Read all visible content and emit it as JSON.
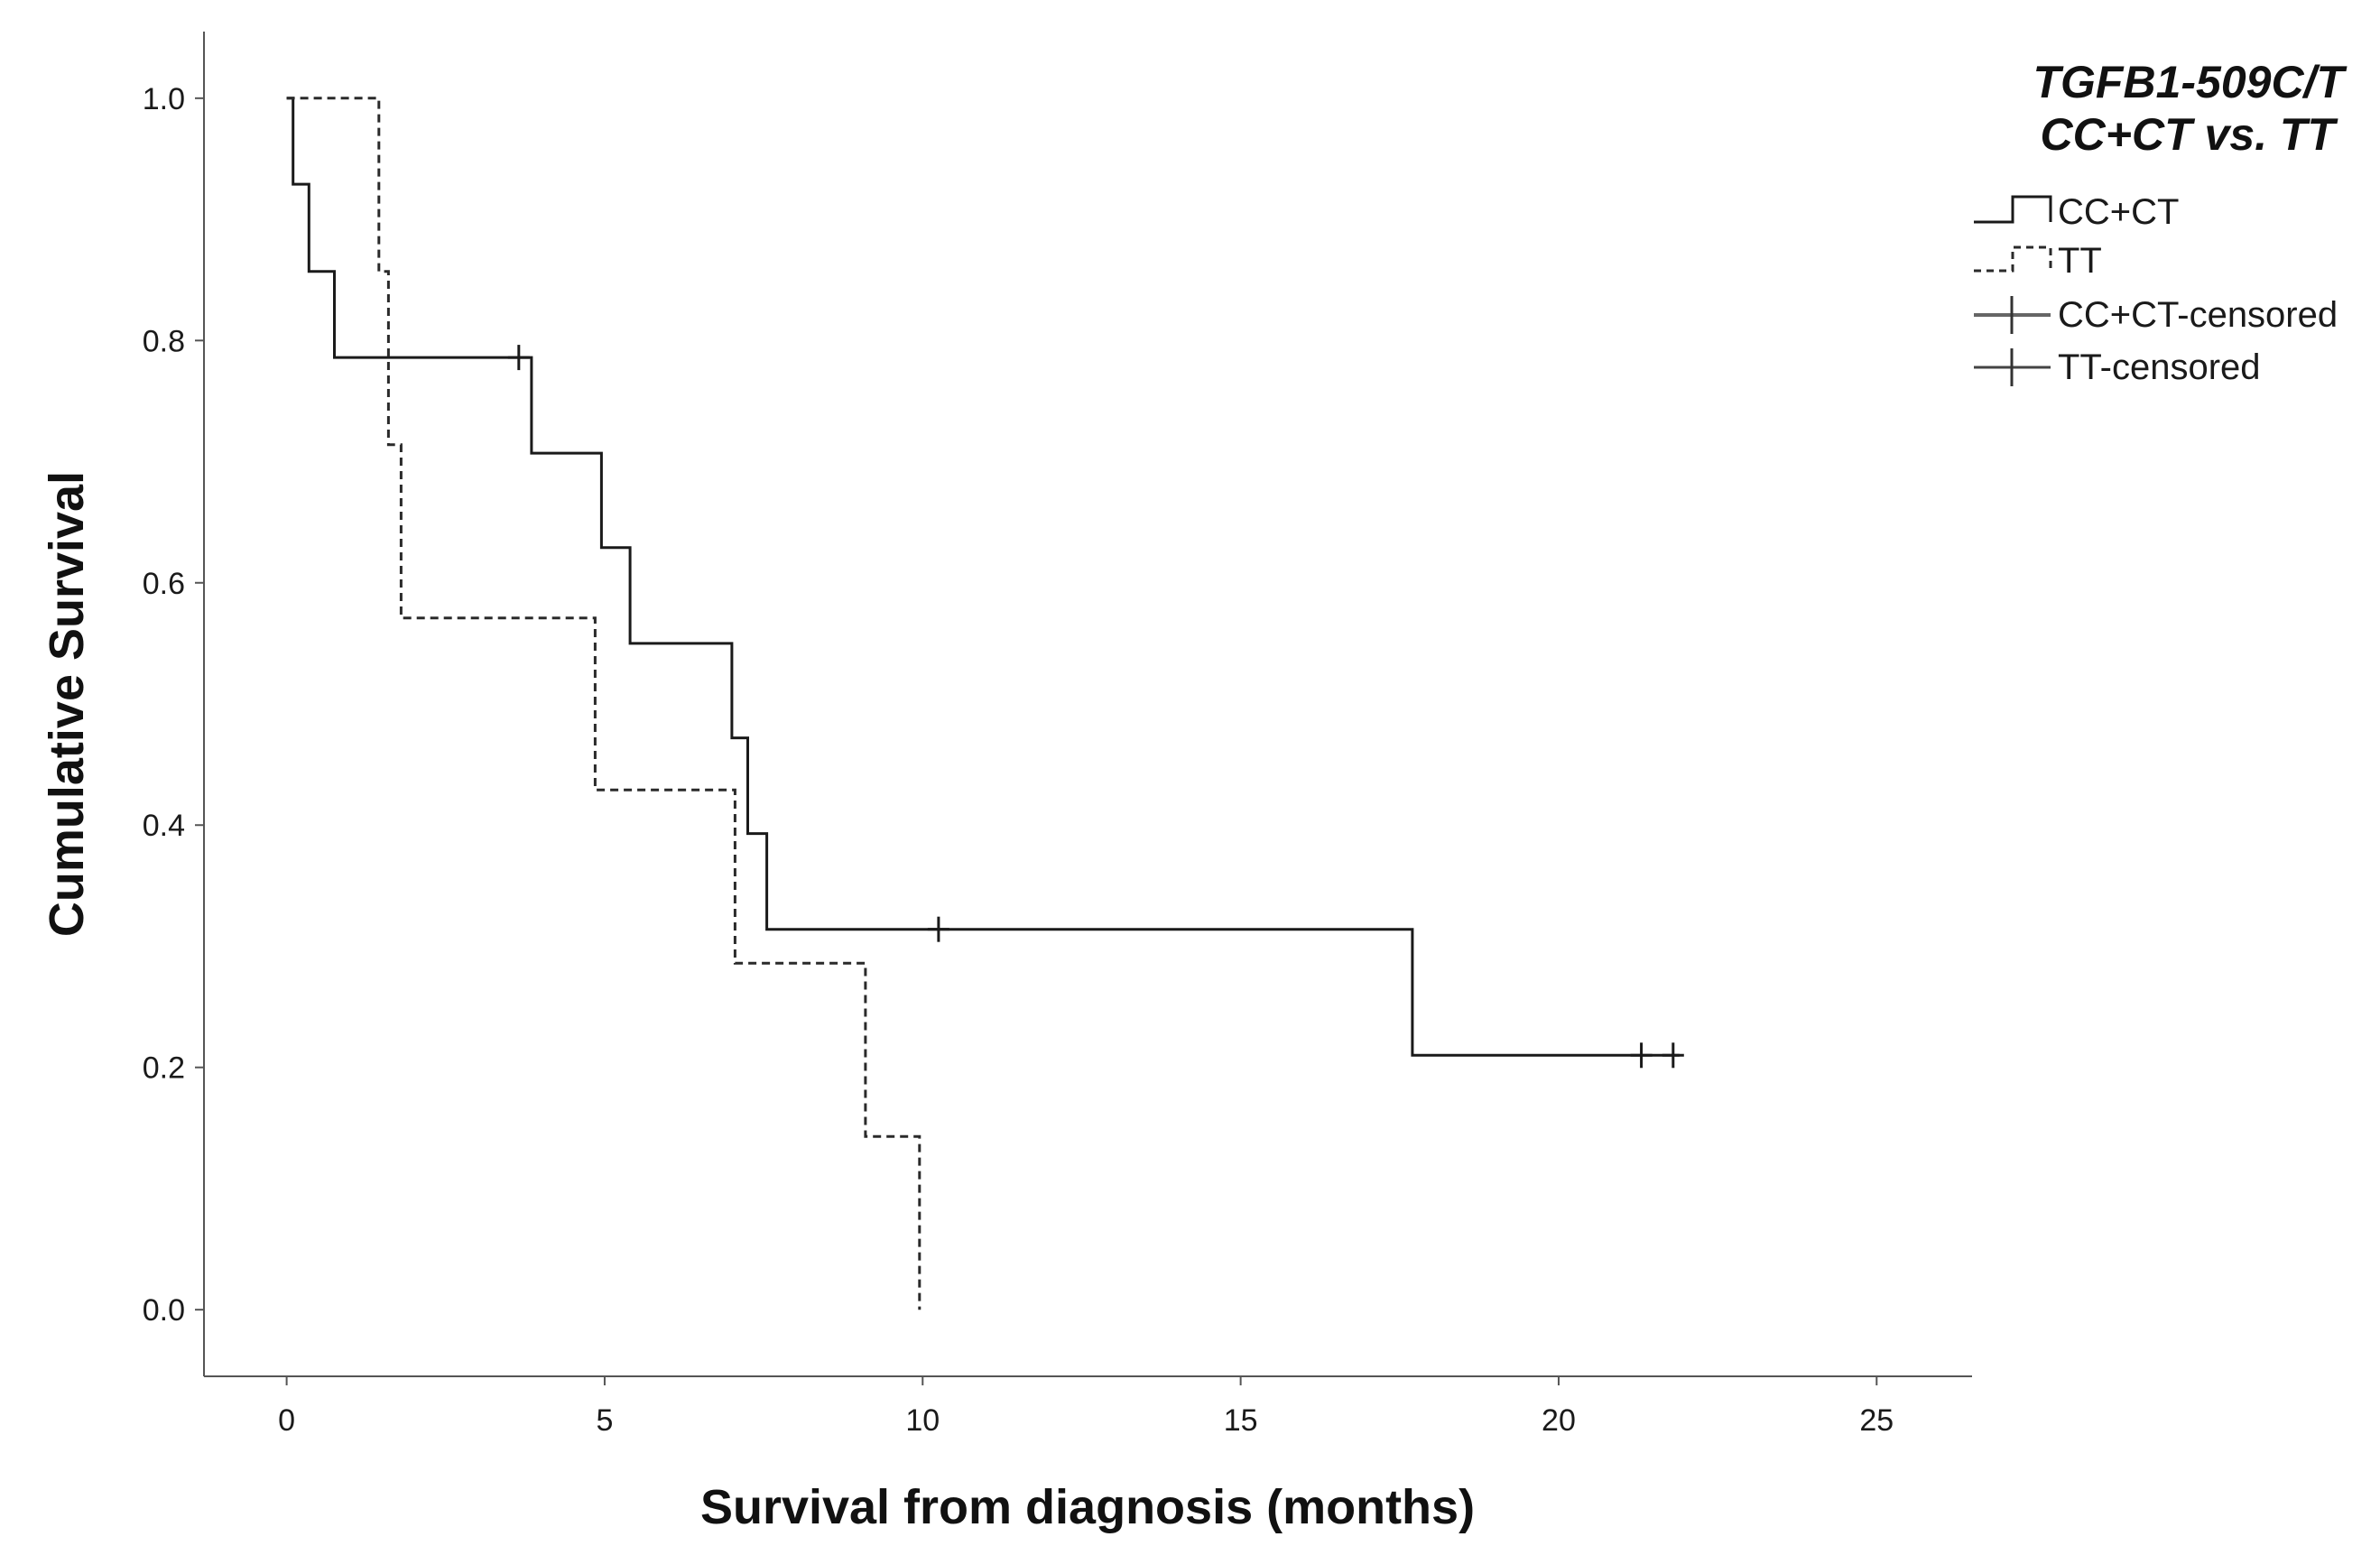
{
  "chart_data": {
    "type": "line",
    "subtype": "kaplan-meier",
    "xlabel": "Survival from diagnosis (months)",
    "ylabel": "Cumulative Survival",
    "xlim": [
      -1.3,
      26.5
    ],
    "ylim": [
      -0.055,
      1.055
    ],
    "xticks": [
      0,
      5,
      10,
      15,
      20,
      25
    ],
    "yticks": [
      0.0,
      0.2,
      0.4,
      0.6,
      0.8,
      1.0
    ],
    "xtick_labels": [
      "0",
      "5",
      "10",
      "15",
      "20",
      "25"
    ],
    "ytick_labels": [
      "0.0",
      "0.2",
      "0.4",
      "0.6",
      "0.8",
      "1.0"
    ],
    "legend_title": [
      "TGFB1-509C/T",
      "CC+CT vs. TT"
    ],
    "legend_entries": [
      "CC+CT",
      "TT",
      "CC+CT-censored",
      "TT-censored"
    ],
    "series": [
      {
        "name": "CC+CT",
        "style": "solid",
        "color": "#1a1a1a",
        "steps": [
          [
            0.0,
            1.0
          ],
          [
            0.1,
            0.929
          ],
          [
            0.35,
            0.857
          ],
          [
            0.75,
            0.786
          ],
          [
            3.85,
            0.707
          ],
          [
            4.95,
            0.629
          ],
          [
            5.4,
            0.55
          ],
          [
            7.0,
            0.472
          ],
          [
            7.25,
            0.393
          ],
          [
            7.55,
            0.314
          ],
          [
            17.7,
            0.21
          ]
        ],
        "end": 21.9,
        "censored": [
          {
            "x": 3.65,
            "y": 0.786
          },
          {
            "x": 10.25,
            "y": 0.314
          },
          {
            "x": 21.3,
            "y": 0.21
          },
          {
            "x": 21.8,
            "y": 0.21
          }
        ]
      },
      {
        "name": "TT",
        "style": "dashed",
        "color": "#2a2a2a",
        "steps": [
          [
            0.0,
            1.0
          ],
          [
            1.45,
            0.857
          ],
          [
            1.6,
            0.714
          ],
          [
            1.8,
            0.571
          ],
          [
            4.85,
            0.429
          ],
          [
            7.05,
            0.286
          ],
          [
            9.1,
            0.143
          ],
          [
            9.95,
            0.0
          ]
        ],
        "end": 9.95,
        "censored": []
      }
    ]
  }
}
